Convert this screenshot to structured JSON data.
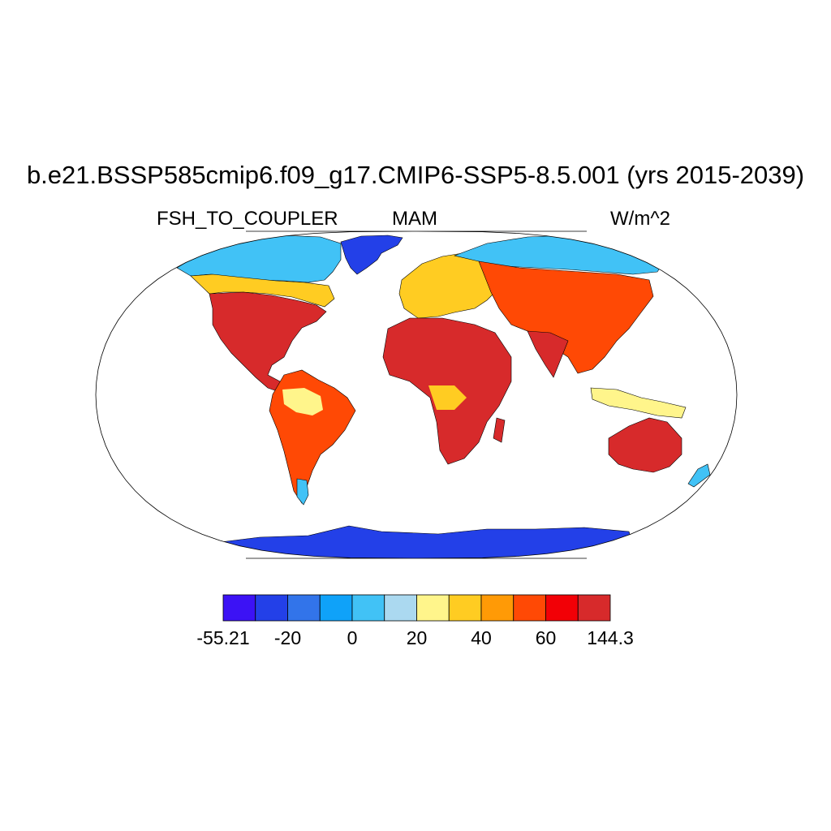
{
  "title": "b.e21.BSSP585cmip6.f09_g17.CMIP6-SSP5-8.5.001 (yrs 2015-2039)",
  "left_label": "FSH_TO_COUPLER",
  "center_label": "MAM",
  "right_label": "W/m^2",
  "map": {
    "projection": "robinson",
    "field": "FSH_TO_COUPLER",
    "background": "#ffffff",
    "coastline_color": "#000000"
  },
  "colorbar": {
    "colors": [
      "#3c12f5",
      "#2340e8",
      "#3274ea",
      "#0fa2f9",
      "#41c2f6",
      "#abd9f0",
      "#fff58b",
      "#ffcc22",
      "#ff9a06",
      "#ff4905",
      "#f20006",
      "#d72a2b"
    ],
    "ticks": [
      {
        "label": "-55.21",
        "index": 0
      },
      {
        "label": "-20",
        "index": 2
      },
      {
        "label": "0",
        "index": 4
      },
      {
        "label": "20",
        "index": 6
      },
      {
        "label": "40",
        "index": 8
      },
      {
        "label": "60",
        "index": 10
      },
      {
        "label": "144.3",
        "index": 12
      }
    ]
  }
}
